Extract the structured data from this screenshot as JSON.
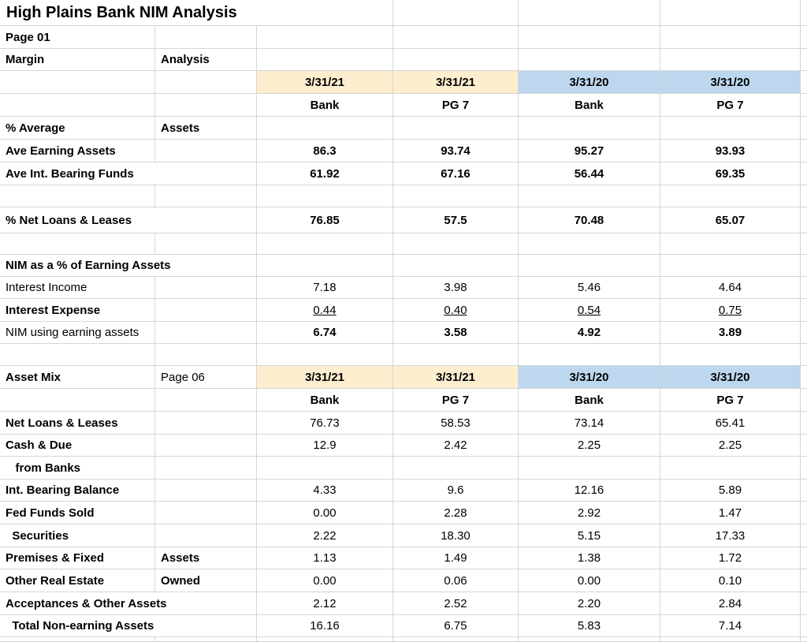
{
  "app": {
    "kind": "spreadsheet"
  },
  "colors": {
    "header_2021_bg": "#fdeed0",
    "header_2020_bg": "#bdd7ee",
    "gridline": "#d5d5d5",
    "text": "#000000",
    "background": "#ffffff"
  },
  "sheet": {
    "title": "High Plains Bank NIM Analysis",
    "rows": [
      {
        "cells": [
          {
            "col": 0,
            "span": 3,
            "text": "High Plains Bank NIM Analysis",
            "bold": true,
            "title": true,
            "name": "sheet-title"
          }
        ]
      },
      {
        "cells": [
          {
            "col": 0,
            "text": "Page 01",
            "bold": true,
            "name": "page-ref"
          }
        ]
      },
      {
        "cells": [
          {
            "col": 0,
            "text": "Margin",
            "bold": true,
            "name": "row-label"
          },
          {
            "col": 1,
            "text": "Analysis",
            "bold": true,
            "name": "row-label"
          }
        ]
      },
      {
        "cells": [
          {
            "col": 2,
            "text": "3/31/21",
            "bold": true,
            "center": true,
            "bg": "cream",
            "name": "period-header"
          },
          {
            "col": 3,
            "text": "3/31/21",
            "bold": true,
            "center": true,
            "bg": "cream",
            "name": "period-header"
          },
          {
            "col": 4,
            "text": "3/31/20",
            "bold": true,
            "center": true,
            "bg": "blue",
            "name": "period-header"
          },
          {
            "col": 5,
            "text": "3/31/20",
            "bold": true,
            "center": true,
            "bg": "blue",
            "name": "period-header"
          }
        ]
      },
      {
        "cells": [
          {
            "col": 2,
            "text": "Bank",
            "bold": true,
            "center": true,
            "name": "entity-header"
          },
          {
            "col": 3,
            "text": "PG 7",
            "bold": true,
            "center": true,
            "name": "entity-header"
          },
          {
            "col": 4,
            "text": "Bank",
            "bold": true,
            "center": true,
            "name": "entity-header"
          },
          {
            "col": 5,
            "text": "PG 7",
            "bold": true,
            "center": true,
            "name": "entity-header"
          }
        ]
      },
      {
        "cells": [
          {
            "col": 0,
            "text": "% Average",
            "bold": true,
            "name": "row-label"
          },
          {
            "col": 1,
            "text": "Assets",
            "bold": true,
            "name": "row-label"
          }
        ]
      },
      {
        "cells": [
          {
            "col": 0,
            "text": "Ave Earning Assets",
            "bold": true,
            "name": "row-label"
          },
          {
            "col": 2,
            "text": "86.3",
            "bold": true,
            "center": true,
            "name": "value"
          },
          {
            "col": 3,
            "text": "93.74",
            "bold": true,
            "center": true,
            "name": "value"
          },
          {
            "col": 4,
            "text": "95.27",
            "bold": true,
            "center": true,
            "name": "value"
          },
          {
            "col": 5,
            "text": "93.93",
            "bold": true,
            "center": true,
            "name": "value"
          }
        ]
      },
      {
        "cells": [
          {
            "col": 0,
            "span": 2,
            "text": "Ave Int. Bearing Funds",
            "bold": true,
            "name": "row-label"
          },
          {
            "col": 2,
            "text": "61.92",
            "bold": true,
            "center": true,
            "name": "value"
          },
          {
            "col": 3,
            "text": "67.16",
            "bold": true,
            "center": true,
            "name": "value"
          },
          {
            "col": 4,
            "text": "56.44",
            "bold": true,
            "center": true,
            "name": "value"
          },
          {
            "col": 5,
            "text": "69.35",
            "bold": true,
            "center": true,
            "name": "value"
          }
        ]
      },
      {
        "cells": []
      },
      {
        "cells": [
          {
            "col": 0,
            "span": 2,
            "text": "% Net Loans & Leases",
            "bold": true,
            "name": "row-label"
          },
          {
            "col": 2,
            "text": "76.85",
            "bold": true,
            "center": true,
            "name": "value"
          },
          {
            "col": 3,
            "text": "57.5",
            "bold": true,
            "center": true,
            "name": "value"
          },
          {
            "col": 4,
            "text": "70.48",
            "bold": true,
            "center": true,
            "name": "value"
          },
          {
            "col": 5,
            "text": "65.07",
            "bold": true,
            "center": true,
            "name": "value"
          }
        ]
      },
      {
        "cells": []
      },
      {
        "cells": [
          {
            "col": 0,
            "span": 2,
            "text": "NIM as a % of Earning Assets",
            "bold": true,
            "name": "section-header"
          }
        ]
      },
      {
        "cells": [
          {
            "col": 0,
            "text": "Interest Income",
            "name": "row-label"
          },
          {
            "col": 2,
            "text": "7.18",
            "center": true,
            "name": "value"
          },
          {
            "col": 3,
            "text": "3.98",
            "center": true,
            "name": "value"
          },
          {
            "col": 4,
            "text": "5.46",
            "center": true,
            "name": "value"
          },
          {
            "col": 5,
            "text": "4.64",
            "center": true,
            "name": "value"
          }
        ]
      },
      {
        "cells": [
          {
            "col": 0,
            "text": "Interest Expense",
            "bold": true,
            "name": "row-label"
          },
          {
            "col": 2,
            "text": "0.44",
            "center": true,
            "underline": true,
            "name": "value"
          },
          {
            "col": 3,
            "text": "0.40",
            "center": true,
            "underline": true,
            "name": "value"
          },
          {
            "col": 4,
            "text": "0.54",
            "center": true,
            "underline": true,
            "name": "value"
          },
          {
            "col": 5,
            "text": "0.75",
            "center": true,
            "underline": true,
            "name": "value"
          }
        ]
      },
      {
        "cells": [
          {
            "col": 0,
            "text": "NIM using earning assets",
            "name": "row-label"
          },
          {
            "col": 2,
            "text": "6.74",
            "bold": true,
            "center": true,
            "name": "value"
          },
          {
            "col": 3,
            "text": "3.58",
            "bold": true,
            "center": true,
            "name": "value"
          },
          {
            "col": 4,
            "text": "4.92",
            "bold": true,
            "center": true,
            "name": "value"
          },
          {
            "col": 5,
            "text": "3.89",
            "bold": true,
            "center": true,
            "name": "value"
          }
        ]
      },
      {
        "cells": []
      },
      {
        "cells": [
          {
            "col": 0,
            "text": "Asset Mix",
            "bold": true,
            "name": "section-header"
          },
          {
            "col": 1,
            "text": "Page 06",
            "name": "page-ref"
          },
          {
            "col": 2,
            "text": "3/31/21",
            "bold": true,
            "center": true,
            "bg": "cream",
            "name": "period-header"
          },
          {
            "col": 3,
            "text": "3/31/21",
            "bold": true,
            "center": true,
            "bg": "cream",
            "name": "period-header"
          },
          {
            "col": 4,
            "text": "3/31/20",
            "bold": true,
            "center": true,
            "bg": "blue",
            "name": "period-header"
          },
          {
            "col": 5,
            "text": "3/31/20",
            "bold": true,
            "center": true,
            "bg": "blue",
            "name": "period-header"
          }
        ]
      },
      {
        "cells": [
          {
            "col": 2,
            "text": "Bank",
            "bold": true,
            "center": true,
            "name": "entity-header"
          },
          {
            "col": 3,
            "text": "PG 7",
            "bold": true,
            "center": true,
            "name": "entity-header"
          },
          {
            "col": 4,
            "text": "Bank",
            "bold": true,
            "center": true,
            "name": "entity-header"
          },
          {
            "col": 5,
            "text": "PG 7",
            "bold": true,
            "center": true,
            "name": "entity-header"
          }
        ]
      },
      {
        "cells": [
          {
            "col": 0,
            "text": "Net Loans & Leases",
            "bold": true,
            "name": "row-label"
          },
          {
            "col": 2,
            "text": "76.73",
            "center": true,
            "name": "value"
          },
          {
            "col": 3,
            "text": "58.53",
            "center": true,
            "name": "value"
          },
          {
            "col": 4,
            "text": "73.14",
            "center": true,
            "name": "value"
          },
          {
            "col": 5,
            "text": "65.41",
            "center": true,
            "name": "value"
          }
        ]
      },
      {
        "cells": [
          {
            "col": 0,
            "text": "Cash & Due",
            "bold": true,
            "name": "row-label"
          },
          {
            "col": 2,
            "text": "12.9",
            "center": true,
            "name": "value"
          },
          {
            "col": 3,
            "text": "2.42",
            "center": true,
            "name": "value"
          },
          {
            "col": 4,
            "text": "2.25",
            "center": true,
            "name": "value"
          },
          {
            "col": 5,
            "text": "2.25",
            "center": true,
            "name": "value"
          }
        ]
      },
      {
        "cells": [
          {
            "col": 0,
            "text": "   from Banks",
            "bold": true,
            "name": "row-label"
          }
        ]
      },
      {
        "cells": [
          {
            "col": 0,
            "text": "Int. Bearing Balance",
            "bold": true,
            "name": "row-label"
          },
          {
            "col": 2,
            "text": "4.33",
            "center": true,
            "name": "value"
          },
          {
            "col": 3,
            "text": "9.6",
            "center": true,
            "name": "value"
          },
          {
            "col": 4,
            "text": "12.16",
            "center": true,
            "name": "value"
          },
          {
            "col": 5,
            "text": "5.89",
            "center": true,
            "name": "value"
          }
        ]
      },
      {
        "cells": [
          {
            "col": 0,
            "text": "Fed Funds Sold",
            "bold": true,
            "name": "row-label"
          },
          {
            "col": 2,
            "text": "0.00",
            "center": true,
            "name": "value"
          },
          {
            "col": 3,
            "text": "2.28",
            "center": true,
            "name": "value"
          },
          {
            "col": 4,
            "text": "2.92",
            "center": true,
            "name": "value"
          },
          {
            "col": 5,
            "text": "1.47",
            "center": true,
            "name": "value"
          }
        ]
      },
      {
        "cells": [
          {
            "col": 0,
            "text": "  Securities",
            "bold": true,
            "name": "row-label"
          },
          {
            "col": 2,
            "text": "2.22",
            "center": true,
            "name": "value"
          },
          {
            "col": 3,
            "text": "18.30",
            "center": true,
            "name": "value"
          },
          {
            "col": 4,
            "text": "5.15",
            "center": true,
            "name": "value"
          },
          {
            "col": 5,
            "text": "17.33",
            "center": true,
            "name": "value"
          }
        ]
      },
      {
        "cells": [
          {
            "col": 0,
            "text": "Premises & Fixed",
            "bold": true,
            "name": "row-label"
          },
          {
            "col": 1,
            "text": "Assets",
            "bold": true,
            "name": "row-label"
          },
          {
            "col": 2,
            "text": "1.13",
            "center": true,
            "name": "value"
          },
          {
            "col": 3,
            "text": "1.49",
            "center": true,
            "name": "value"
          },
          {
            "col": 4,
            "text": "1.38",
            "center": true,
            "name": "value"
          },
          {
            "col": 5,
            "text": "1.72",
            "center": true,
            "name": "value"
          }
        ]
      },
      {
        "cells": [
          {
            "col": 0,
            "text": "Other Real Estate",
            "bold": true,
            "name": "row-label"
          },
          {
            "col": 1,
            "text": "Owned",
            "bold": true,
            "name": "row-label"
          },
          {
            "col": 2,
            "text": "0.00",
            "center": true,
            "name": "value"
          },
          {
            "col": 3,
            "text": "0.06",
            "center": true,
            "name": "value"
          },
          {
            "col": 4,
            "text": "0.00",
            "center": true,
            "name": "value"
          },
          {
            "col": 5,
            "text": "0.10",
            "center": true,
            "name": "value"
          }
        ]
      },
      {
        "cells": [
          {
            "col": 0,
            "span": 2,
            "text": "Acceptances & Other Assets",
            "bold": true,
            "name": "row-label"
          },
          {
            "col": 2,
            "text": "2.12",
            "center": true,
            "name": "value"
          },
          {
            "col": 3,
            "text": "2.52",
            "center": true,
            "name": "value"
          },
          {
            "col": 4,
            "text": "2.20",
            "center": true,
            "name": "value"
          },
          {
            "col": 5,
            "text": "2.84",
            "center": true,
            "name": "value"
          }
        ]
      },
      {
        "cells": [
          {
            "col": 0,
            "span": 2,
            "text": "  Total Non-earning Assets",
            "bold": true,
            "name": "row-label"
          },
          {
            "col": 2,
            "text": "16.16",
            "center": true,
            "name": "value"
          },
          {
            "col": 3,
            "text": "6.75",
            "center": true,
            "name": "value"
          },
          {
            "col": 4,
            "text": "5.83",
            "center": true,
            "name": "value"
          },
          {
            "col": 5,
            "text": "7.14",
            "center": true,
            "name": "value"
          }
        ]
      },
      {
        "cells": []
      }
    ]
  }
}
